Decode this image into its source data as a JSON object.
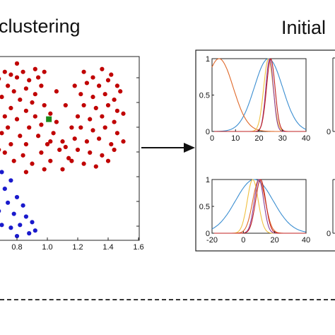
{
  "titles": {
    "left": "clustering",
    "right": "Initial"
  },
  "colors": {
    "red_cluster": "#c00000",
    "blue_cluster": "#1a1acc",
    "centroid": "#1a8a1a",
    "panel_border": "#222222",
    "curve_blue": "#3b8ed1",
    "curve_orange": "#e0692a",
    "curve_yellow": "#f0c040",
    "curve_purple": "#8b3f9a",
    "curve_red": "#c02020"
  },
  "chart_data": [
    {
      "type": "scatter",
      "title": "",
      "xlabel": "",
      "ylabel": "",
      "xticks": [
        "0.8",
        "1.0",
        "1.2",
        "1.4",
        "1.6"
      ],
      "series": [
        {
          "color": "red",
          "points": [
            [
              0.65,
              1.92
            ],
            [
              0.72,
              1.9
            ],
            [
              0.76,
              1.88
            ],
            [
              0.68,
              1.85
            ],
            [
              0.8,
              1.86
            ],
            [
              0.84,
              1.9
            ],
            [
              0.88,
              1.84
            ],
            [
              0.74,
              1.8
            ],
            [
              0.66,
              1.78
            ],
            [
              0.78,
              1.76
            ],
            [
              0.86,
              1.78
            ],
            [
              0.92,
              1.74
            ],
            [
              0.96,
              1.8
            ],
            [
              0.7,
              1.72
            ],
            [
              0.82,
              1.7
            ],
            [
              0.9,
              1.68
            ],
            [
              0.64,
              1.66
            ],
            [
              0.76,
              1.64
            ],
            [
              0.86,
              1.62
            ],
            [
              0.98,
              1.66
            ],
            [
              0.72,
              1.58
            ],
            [
              0.8,
              1.56
            ],
            [
              0.92,
              1.58
            ],
            [
              1.02,
              1.6
            ],
            [
              0.66,
              1.52
            ],
            [
              0.74,
              1.5
            ],
            [
              0.88,
              1.5
            ],
            [
              0.96,
              1.52
            ],
            [
              1.06,
              1.54
            ],
            [
              0.7,
              1.46
            ],
            [
              0.82,
              1.44
            ],
            [
              0.94,
              1.44
            ],
            [
              1.04,
              1.46
            ],
            [
              0.66,
              1.4
            ],
            [
              0.76,
              1.38
            ],
            [
              0.86,
              1.38
            ],
            [
              1.0,
              1.38
            ],
            [
              1.1,
              1.4
            ],
            [
              0.72,
              1.32
            ],
            [
              0.84,
              1.3
            ],
            [
              0.96,
              1.32
            ],
            [
              1.08,
              1.34
            ],
            [
              0.78,
              1.26
            ],
            [
              0.9,
              1.24
            ],
            [
              1.02,
              1.26
            ],
            [
              1.14,
              1.28
            ],
            [
              0.86,
              1.18
            ],
            [
              0.98,
              1.2
            ],
            [
              1.1,
              1.2
            ],
            [
              1.24,
              1.9
            ],
            [
              1.3,
              1.86
            ],
            [
              1.36,
              1.92
            ],
            [
              1.42,
              1.88
            ],
            [
              1.26,
              1.82
            ],
            [
              1.34,
              1.8
            ],
            [
              1.4,
              1.84
            ],
            [
              1.46,
              1.8
            ],
            [
              1.22,
              1.74
            ],
            [
              1.3,
              1.72
            ],
            [
              1.38,
              1.74
            ],
            [
              1.44,
              1.7
            ],
            [
              1.48,
              1.76
            ],
            [
              1.24,
              1.66
            ],
            [
              1.32,
              1.64
            ],
            [
              1.4,
              1.66
            ],
            [
              1.46,
              1.62
            ],
            [
              1.2,
              1.58
            ],
            [
              1.28,
              1.56
            ],
            [
              1.36,
              1.58
            ],
            [
              1.44,
              1.54
            ],
            [
              1.22,
              1.5
            ],
            [
              1.3,
              1.48
            ],
            [
              1.38,
              1.5
            ],
            [
              1.46,
              1.46
            ],
            [
              1.18,
              1.42
            ],
            [
              1.26,
              1.4
            ],
            [
              1.34,
              1.42
            ],
            [
              1.42,
              1.38
            ],
            [
              1.2,
              1.34
            ],
            [
              1.28,
              1.32
            ],
            [
              1.36,
              1.3
            ],
            [
              1.44,
              1.34
            ],
            [
              1.16,
              1.26
            ],
            [
              1.24,
              1.24
            ],
            [
              1.32,
              1.22
            ],
            [
              1.4,
              1.26
            ],
            [
              0.94,
              1.86
            ],
            [
              1.12,
              1.66
            ],
            [
              1.16,
              1.5
            ],
            [
              1.06,
              1.76
            ],
            [
              0.62,
              1.6
            ],
            [
              0.68,
              1.34
            ],
            [
              0.92,
              1.92
            ],
            [
              1.18,
              1.8
            ],
            [
              1.5,
              1.6
            ],
            [
              1.5,
              1.4
            ],
            [
              0.8,
              1.96
            ],
            [
              1.02,
              1.4
            ],
            [
              0.98,
              1.9
            ],
            [
              1.12,
              1.36
            ]
          ]
        },
        {
          "color": "blue",
          "points": [
            [
              0.62,
              1.24
            ],
            [
              0.66,
              1.2
            ],
            [
              0.7,
              1.18
            ],
            [
              0.64,
              1.1
            ],
            [
              0.72,
              1.06
            ],
            [
              0.76,
              1.12
            ],
            [
              0.8,
              1.0
            ],
            [
              0.74,
              0.96
            ],
            [
              0.84,
              0.94
            ],
            [
              0.68,
              0.9
            ],
            [
              0.78,
              0.88
            ],
            [
              0.86,
              0.86
            ],
            [
              0.82,
              0.8
            ],
            [
              0.9,
              0.82
            ],
            [
              0.76,
              0.78
            ],
            [
              0.88,
              0.74
            ],
            [
              0.7,
              0.8
            ],
            [
              0.66,
              0.98
            ],
            [
              0.92,
              0.76
            ],
            [
              0.8,
              0.72
            ]
          ]
        },
        {
          "color": "green",
          "marker": "square",
          "points": [
            [
              1.01,
              1.56
            ]
          ]
        }
      ]
    },
    {
      "type": "line",
      "title": "",
      "xlabel": "",
      "ylabel": "",
      "xticks": [
        "0",
        "10",
        "20",
        "30",
        "40"
      ],
      "yticks": [
        "0",
        "0.5",
        "1"
      ],
      "series": [
        {
          "color": "blue",
          "kind": "gauss",
          "mu": 24,
          "sigma": 6
        },
        {
          "color": "orange",
          "kind": "gauss",
          "mu": 3,
          "sigma": 6
        },
        {
          "color": "yellow",
          "kind": "gauss",
          "mu": 24,
          "sigma": 2
        },
        {
          "color": "purple",
          "kind": "gauss",
          "mu": 24.5,
          "sigma": 1.6
        },
        {
          "color": "red",
          "kind": "gauss",
          "mu": 25,
          "sigma": 1.8
        }
      ]
    },
    {
      "type": "line",
      "title": "",
      "xlabel": "",
      "ylabel": "",
      "xticks": [
        "-20",
        "0",
        "20",
        "40"
      ],
      "yticks": [
        "0",
        "0.5",
        "1"
      ],
      "series": [
        {
          "color": "blue",
          "kind": "gauss",
          "mu": 7,
          "sigma": 12
        },
        {
          "color": "orange",
          "kind": "gauss",
          "mu": 10,
          "sigma": 4
        },
        {
          "color": "yellow",
          "kind": "gauss",
          "mu": 6,
          "sigma": 3.5
        },
        {
          "color": "purple",
          "kind": "gauss",
          "mu": 10,
          "sigma": 3
        },
        {
          "color": "red",
          "kind": "gauss",
          "mu": 11,
          "sigma": 3.2
        }
      ]
    }
  ],
  "partial_panels": {
    "top_right_ytick": "0",
    "bottom_right_ytick": "0"
  }
}
